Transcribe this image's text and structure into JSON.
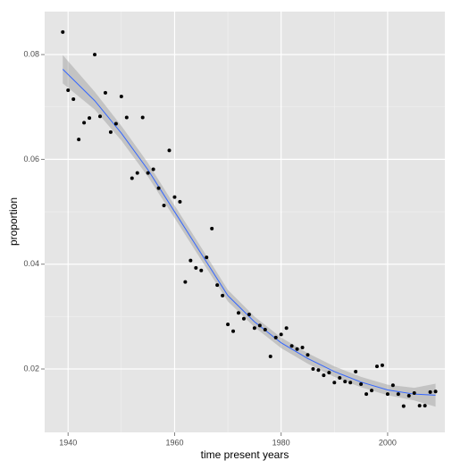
{
  "chart_data": {
    "type": "scatter",
    "x_label": "time present years",
    "y_label": "proportion",
    "x": [
      1939,
      1940,
      1941,
      1942,
      1943,
      1944,
      1945,
      1946,
      1947,
      1948,
      1949,
      1950,
      1951,
      1952,
      1953,
      1954,
      1955,
      1956,
      1957,
      1958,
      1959,
      1960,
      1961,
      1962,
      1963,
      1964,
      1965,
      1966,
      1967,
      1968,
      1969,
      1970,
      1971,
      1972,
      1973,
      1974,
      1975,
      1976,
      1977,
      1978,
      1979,
      1980,
      1981,
      1982,
      1983,
      1984,
      1985,
      1986,
      1987,
      1988,
      1989,
      1990,
      1991,
      1992,
      1993,
      1994,
      1995,
      1996,
      1997,
      1998,
      1999,
      2000,
      2001,
      2002,
      2003,
      2004,
      2005,
      2006,
      2007,
      2008,
      2009
    ],
    "series": [
      {
        "color": "#000000",
        "values": [
          0.0843,
          0.0732,
          0.0715,
          0.0638,
          0.067,
          0.0679,
          0.08,
          0.0682,
          0.0727,
          0.0652,
          0.0668,
          0.072,
          0.068,
          0.0564,
          0.0574,
          0.068,
          0.0574,
          0.0581,
          0.0545,
          0.0512,
          0.0617,
          0.0528,
          0.0519,
          0.0366,
          0.0407,
          0.0393,
          0.0388,
          0.0413,
          0.0468,
          0.036,
          0.034,
          0.0285,
          0.0272,
          0.0307,
          0.0296,
          0.0304,
          0.0278,
          0.0283,
          0.0275,
          0.0224,
          0.026,
          0.0266,
          0.0278,
          0.0244,
          0.0238,
          0.0241,
          0.0227,
          0.02,
          0.0198,
          0.0188,
          0.0193,
          0.0174,
          0.0183,
          0.0176,
          0.0174,
          0.0195,
          0.0171,
          0.0152,
          0.0159,
          0.0205,
          0.0207,
          0.0152,
          0.0169,
          0.0152,
          0.0129,
          0.0149,
          0.0154,
          0.013,
          0.013,
          0.0156,
          0.0157
        ]
      }
    ],
    "smooth": {
      "color": "#3366FF",
      "band_color": "#999999",
      "x": [
        1939,
        1945,
        1950,
        1955,
        1960,
        1965,
        1970,
        1975,
        1980,
        1985,
        1990,
        1995,
        2000,
        2005,
        2009
      ],
      "values": [
        0.0772,
        0.0712,
        0.065,
        0.058,
        0.05,
        0.042,
        0.034,
        0.029,
        0.025,
        0.022,
        0.0195,
        0.0175,
        0.016,
        0.0152,
        0.015
      ],
      "lower": [
        0.0745,
        0.0695,
        0.0636,
        0.0567,
        0.0488,
        0.0408,
        0.0329,
        0.028,
        0.024,
        0.021,
        0.0185,
        0.0165,
        0.015,
        0.014,
        0.0128
      ],
      "upper": [
        0.0799,
        0.0729,
        0.0664,
        0.0593,
        0.0512,
        0.0432,
        0.0351,
        0.03,
        0.026,
        0.023,
        0.0205,
        0.0185,
        0.017,
        0.0164,
        0.0172
      ]
    },
    "xlim": [
      1935.6,
      2010.75
    ],
    "ylim": [
      0.0079,
      0.0882
    ],
    "xticks": [
      1940,
      1960,
      1980,
      2000
    ],
    "yticks": [
      0.02,
      0.04,
      0.06,
      0.08
    ],
    "grid": true
  }
}
